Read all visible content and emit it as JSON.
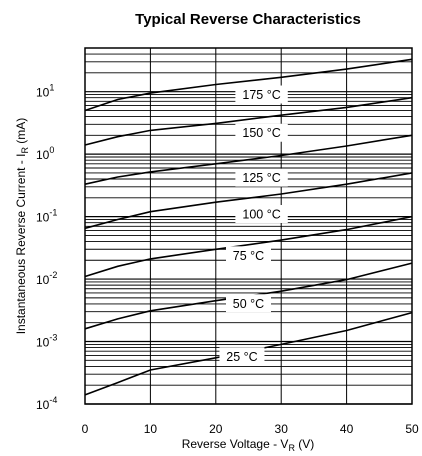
{
  "chart_data": {
    "type": "line",
    "title": "Typical Reverse Characteristics",
    "xlabel": {
      "main": "Reverse Voltage - V",
      "sub": "R",
      "tail": " (V)"
    },
    "ylabel": {
      "main": "Instantaneous Reverse Current - I",
      "sub": "R",
      "tail": " (mA)"
    },
    "xlim": [
      0,
      50
    ],
    "ylim": [
      0.0001,
      50
    ],
    "yscale": "log",
    "grid": true,
    "x_ticks": [
      "0",
      "10",
      "20",
      "30",
      "40",
      "50"
    ],
    "y_ticks": [
      {
        "base": "10",
        "exp": "1",
        "value": 10
      },
      {
        "base": "10",
        "exp": "0",
        "value": 1
      },
      {
        "base": "10",
        "exp": "-1",
        "value": 0.1
      },
      {
        "base": "10",
        "exp": "-2",
        "value": 0.01
      },
      {
        "base": "10",
        "exp": "-3",
        "value": 0.001
      },
      {
        "base": "10",
        "exp": "-4",
        "value": 0.0001
      }
    ],
    "series": [
      {
        "name": "175 °C",
        "label_at": [
          27,
          9.0
        ],
        "points": [
          [
            0,
            5.0
          ],
          [
            5,
            7.5
          ],
          [
            10,
            9.5
          ],
          [
            20,
            13
          ],
          [
            30,
            17
          ],
          [
            40,
            23
          ],
          [
            50,
            33
          ]
        ]
      },
      {
        "name": "150 °C",
        "label_at": [
          27,
          2.2
        ],
        "points": [
          [
            0,
            1.4
          ],
          [
            5,
            1.9
          ],
          [
            10,
            2.4
          ],
          [
            20,
            3.1
          ],
          [
            30,
            4.2
          ],
          [
            40,
            5.6
          ],
          [
            50,
            8.0
          ]
        ]
      },
      {
        "name": "125 °C",
        "label_at": [
          27,
          0.42
        ],
        "points": [
          [
            0,
            0.33
          ],
          [
            5,
            0.43
          ],
          [
            10,
            0.52
          ],
          [
            20,
            0.7
          ],
          [
            30,
            0.95
          ],
          [
            40,
            1.35
          ],
          [
            50,
            2.0
          ]
        ]
      },
      {
        "name": "100 °C",
        "label_at": [
          27,
          0.11
        ],
        "points": [
          [
            0,
            0.065
          ],
          [
            5,
            0.09
          ],
          [
            10,
            0.12
          ],
          [
            20,
            0.17
          ],
          [
            30,
            0.23
          ],
          [
            40,
            0.33
          ],
          [
            50,
            0.5
          ]
        ]
      },
      {
        "name": "75 °C",
        "label_at": [
          25,
          0.024
        ],
        "points": [
          [
            0,
            0.011
          ],
          [
            5,
            0.016
          ],
          [
            10,
            0.021
          ],
          [
            20,
            0.03
          ],
          [
            30,
            0.042
          ],
          [
            40,
            0.062
          ],
          [
            50,
            0.1
          ]
        ]
      },
      {
        "name": "50 °C",
        "label_at": [
          25,
          0.0041
        ],
        "points": [
          [
            0,
            0.0016
          ],
          [
            5,
            0.0023
          ],
          [
            10,
            0.0031
          ],
          [
            20,
            0.0045
          ],
          [
            30,
            0.0064
          ],
          [
            40,
            0.0098
          ],
          [
            50,
            0.018
          ]
        ]
      },
      {
        "name": "25 °C",
        "label_at": [
          24,
          0.00058
        ],
        "points": [
          [
            0,
            0.00014
          ],
          [
            5,
            0.00022
          ],
          [
            10,
            0.00035
          ],
          [
            20,
            0.00055
          ],
          [
            30,
            0.0009
          ],
          [
            40,
            0.0015
          ],
          [
            50,
            0.0029
          ]
        ]
      }
    ]
  }
}
